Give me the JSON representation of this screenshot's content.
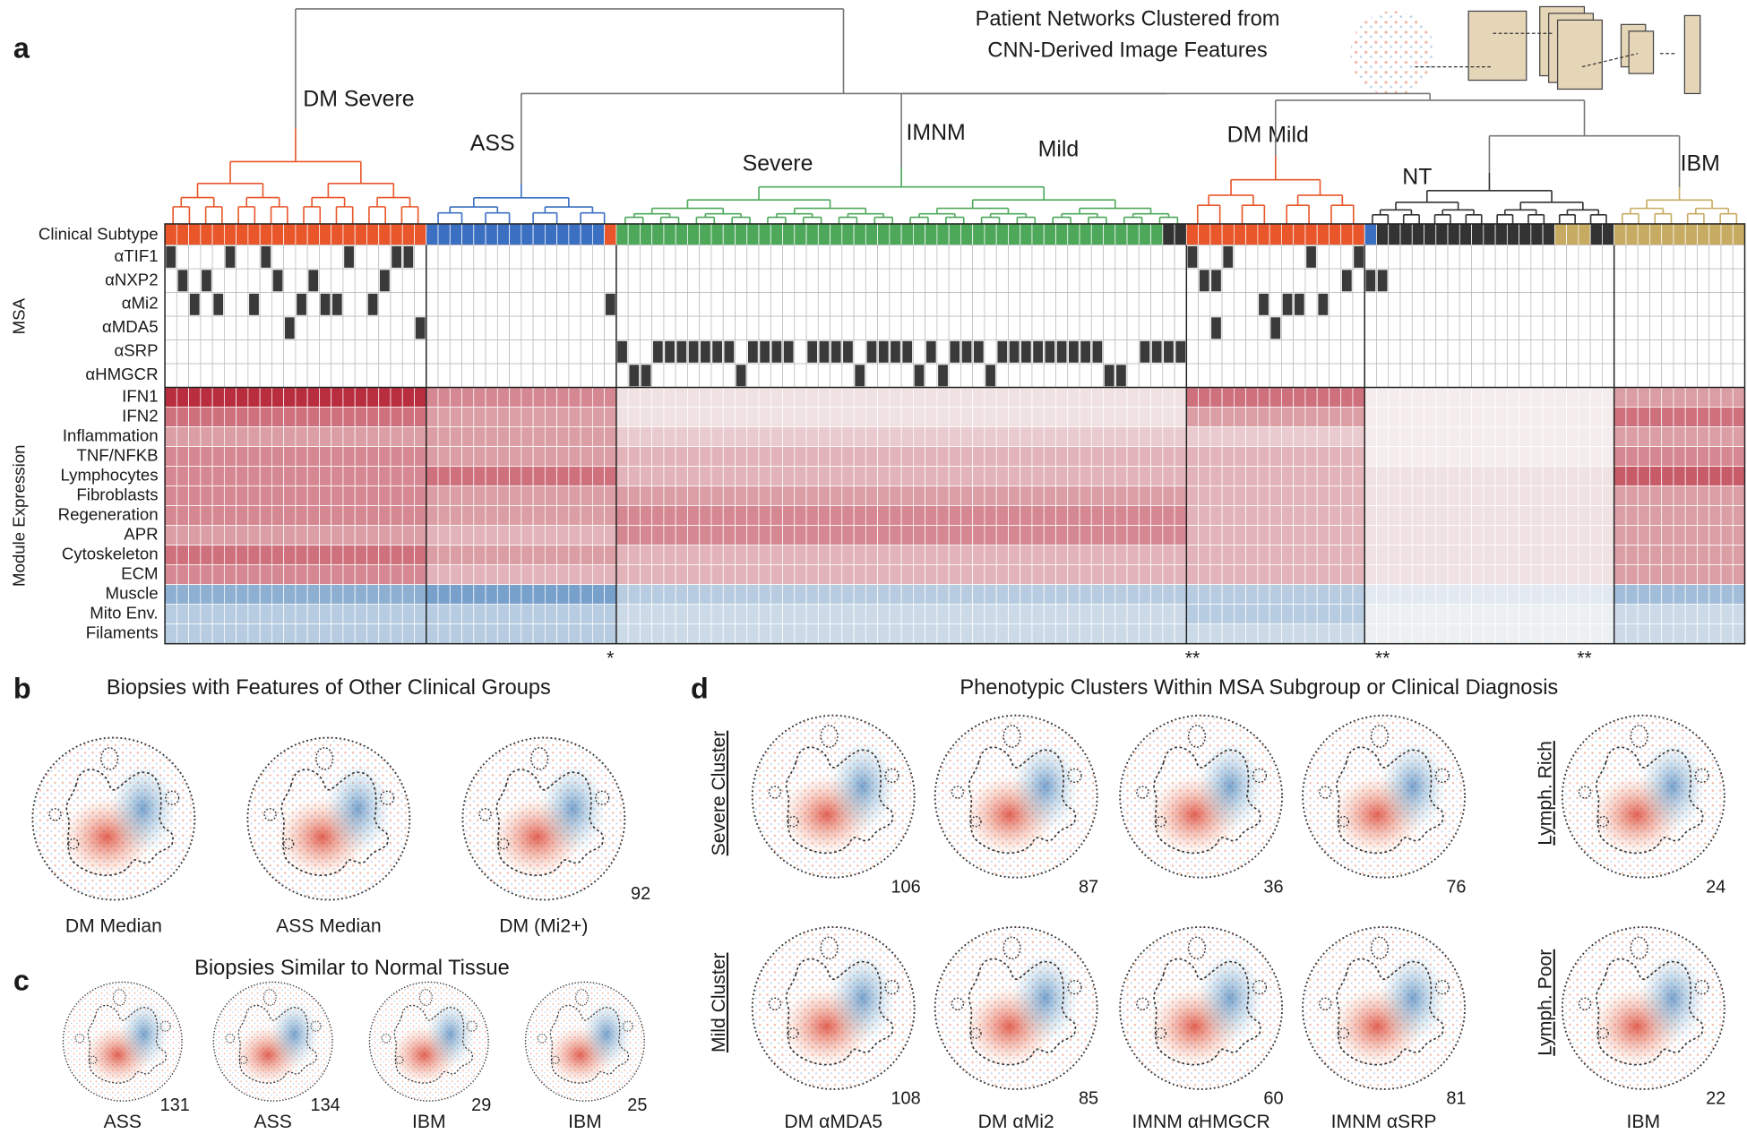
{
  "panel_a": {
    "label": "a",
    "title_lines": [
      "Patient Networks Clustered from",
      "CNN-Derived Image Features"
    ],
    "cluster_labels": [
      "DM Severe",
      "ASS",
      "Severe",
      "IMNM",
      "Mild",
      "DM Mild",
      "NT",
      "IBM"
    ],
    "subtype_label": "Clinical Subtype",
    "row_group_labels": [
      "MSA",
      "Module Expression"
    ],
    "group_sizes": [
      22,
      16,
      48,
      15,
      21,
      11
    ],
    "group_colors": [
      "#e8562a",
      "#3b6fc2",
      "#4ea85a",
      "#e8562a",
      "#333333",
      "#c7ab62"
    ],
    "subtype_segments": [
      {
        "color": "#e8562a",
        "count": 22
      },
      {
        "color": "#3b6fc2",
        "count": 15
      },
      {
        "color": "#e8562a",
        "count": 1
      },
      {
        "color": "#4ea85a",
        "count": 46
      },
      {
        "color": "#333333",
        "count": 2
      },
      {
        "color": "#e8562a",
        "count": 15
      },
      {
        "color": "#3b6fc2",
        "count": 1
      },
      {
        "color": "#333333",
        "count": 15
      },
      {
        "color": "#c7ab62",
        "count": 3
      },
      {
        "color": "#333333",
        "count": 2
      },
      {
        "color": "#c7ab62",
        "count": 11
      }
    ],
    "msa": [
      {
        "name": "αTIF1",
        "columns": [
          0,
          5,
          8,
          15,
          19,
          20,
          86,
          89,
          96,
          100
        ]
      },
      {
        "name": "αNXP2",
        "columns": [
          1,
          3,
          9,
          12,
          18,
          87,
          88,
          99,
          101,
          102
        ]
      },
      {
        "name": "αMi2",
        "columns": [
          2,
          4,
          7,
          11,
          13,
          14,
          17,
          37,
          92,
          94,
          95,
          97
        ]
      },
      {
        "name": "αMDA5",
        "columns": [
          10,
          21,
          88,
          93
        ]
      },
      {
        "name": "αSRP",
        "columns": [
          38,
          41,
          42,
          43,
          44,
          45,
          46,
          47,
          49,
          50,
          51,
          52,
          54,
          55,
          56,
          57,
          59,
          60,
          61,
          62,
          64,
          66,
          67,
          68,
          70,
          71,
          72,
          73,
          74,
          75,
          76,
          77,
          78,
          82,
          83,
          84,
          85
        ]
      },
      {
        "name": "αHMGCR",
        "columns": [
          39,
          40,
          48,
          58,
          63,
          65,
          69,
          79,
          80
        ]
      }
    ],
    "modules": [
      {
        "name": "IFN1",
        "values": [
          0.9,
          0.5,
          0.1,
          0.6,
          0.05,
          0.4
        ]
      },
      {
        "name": "IFN2",
        "values": [
          0.6,
          0.4,
          0.1,
          0.4,
          0.05,
          0.6
        ]
      },
      {
        "name": "Inflammation",
        "values": [
          0.4,
          0.4,
          0.2,
          0.2,
          0.05,
          0.4
        ]
      },
      {
        "name": "TNF/NFKB",
        "values": [
          0.5,
          0.4,
          0.3,
          0.3,
          0.05,
          0.5
        ]
      },
      {
        "name": "Lymphocytes",
        "values": [
          0.5,
          0.6,
          0.3,
          0.3,
          0.1,
          0.7
        ]
      },
      {
        "name": "Fibroblasts",
        "values": [
          0.5,
          0.4,
          0.4,
          0.3,
          0.1,
          0.4
        ]
      },
      {
        "name": "Regeneration",
        "values": [
          0.5,
          0.4,
          0.5,
          0.3,
          0.1,
          0.4
        ]
      },
      {
        "name": "APR",
        "values": [
          0.4,
          0.3,
          0.5,
          0.3,
          0.1,
          0.4
        ]
      },
      {
        "name": "Cytoskeleton",
        "values": [
          0.6,
          0.4,
          0.3,
          0.3,
          0.1,
          0.4
        ]
      },
      {
        "name": "ECM",
        "values": [
          0.5,
          0.3,
          0.3,
          0.3,
          0.1,
          0.4
        ]
      },
      {
        "name": "Muscle",
        "values": [
          -0.5,
          -0.6,
          -0.3,
          -0.3,
          -0.1,
          -0.4
        ]
      },
      {
        "name": "Mito Env.",
        "values": [
          -0.3,
          -0.3,
          -0.2,
          -0.3,
          -0.05,
          -0.2
        ]
      },
      {
        "name": "Filaments",
        "values": [
          -0.3,
          -0.3,
          -0.2,
          -0.2,
          -0.05,
          -0.2
        ]
      }
    ],
    "asterisks": [
      {
        "text": "*",
        "column": 37
      },
      {
        "text": "**",
        "column": 86
      },
      {
        "text": "**",
        "column": 102
      },
      {
        "text": "**",
        "column": 119
      }
    ]
  },
  "panel_b": {
    "label": "b",
    "title": "Biopsies with Features of Other Clinical Groups",
    "items": [
      "DM Median",
      "ASS Median",
      "DM (Mi2+)"
    ],
    "number": 92
  },
  "panel_c": {
    "label": "c",
    "title": "Biopsies Similar to Normal Tissue",
    "items": [
      "ASS",
      "ASS",
      "IBM",
      "IBM"
    ],
    "numbers": [
      131,
      134,
      29,
      25
    ]
  },
  "panel_d": {
    "label": "d",
    "title": "Phenotypic Clusters Within MSA Subgroup or Clinical Diagnosis",
    "row_labels": [
      "Severe Cluster",
      "Mild Cluster"
    ],
    "side_labels": [
      "Lymph. Rich",
      "Lymph. Poor"
    ],
    "column_labels": [
      "DM αMDA5",
      "DM αMi2",
      "IMNM αHMGCR",
      "IMNM αSRP",
      "IBM"
    ],
    "numbers": [
      [
        106,
        87,
        36,
        76,
        24
      ],
      [
        108,
        85,
        60,
        81,
        22
      ]
    ]
  }
}
